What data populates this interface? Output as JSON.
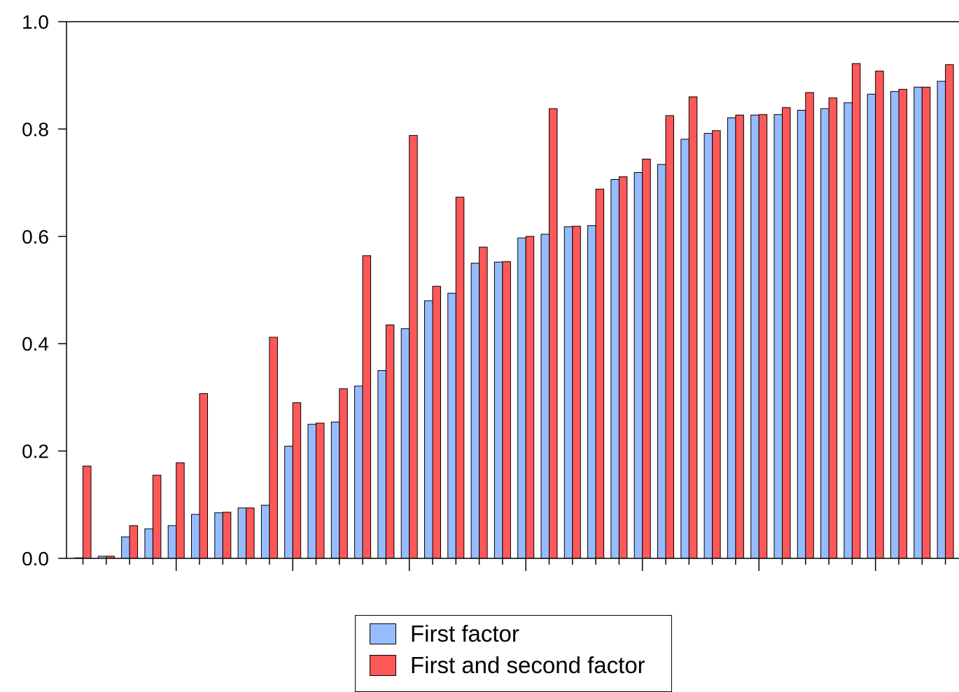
{
  "chart_data": {
    "type": "bar",
    "ylim": [
      0.0,
      1.0
    ],
    "yticks": [
      "0.0",
      "0.2",
      "0.4",
      "0.6",
      "0.8",
      "1.0"
    ],
    "grid": false,
    "legend_position": "bottom-center",
    "series": [
      {
        "name": "First factor",
        "color": "#96bcff",
        "values": [
          0.001,
          0.004,
          0.04,
          0.055,
          0.061,
          0.082,
          0.085,
          0.094,
          0.099,
          0.209,
          0.25,
          0.254,
          0.321,
          0.35,
          0.428,
          0.48,
          0.494,
          0.55,
          0.552,
          0.597,
          0.604,
          0.618,
          0.62,
          0.706,
          0.719,
          0.734,
          0.781,
          0.792,
          0.821,
          0.826,
          0.827,
          0.835,
          0.838,
          0.849,
          0.865,
          0.87,
          0.878,
          0.889
        ]
      },
      {
        "name": "First and second factor",
        "color": "#ff5858",
        "values": [
          0.172,
          0.004,
          0.061,
          0.155,
          0.178,
          0.307,
          0.086,
          0.094,
          0.412,
          0.29,
          0.252,
          0.316,
          0.564,
          0.435,
          0.788,
          0.507,
          0.673,
          0.58,
          0.553,
          0.6,
          0.838,
          0.619,
          0.688,
          0.711,
          0.744,
          0.825,
          0.86,
          0.797,
          0.826,
          0.827,
          0.84,
          0.868,
          0.858,
          0.922,
          0.908,
          0.874,
          0.878,
          0.92
        ]
      }
    ]
  },
  "legend": {
    "items": [
      {
        "label": "First factor",
        "color": "#96bcff"
      },
      {
        "label": "First and second factor",
        "color": "#ff5858"
      }
    ]
  }
}
